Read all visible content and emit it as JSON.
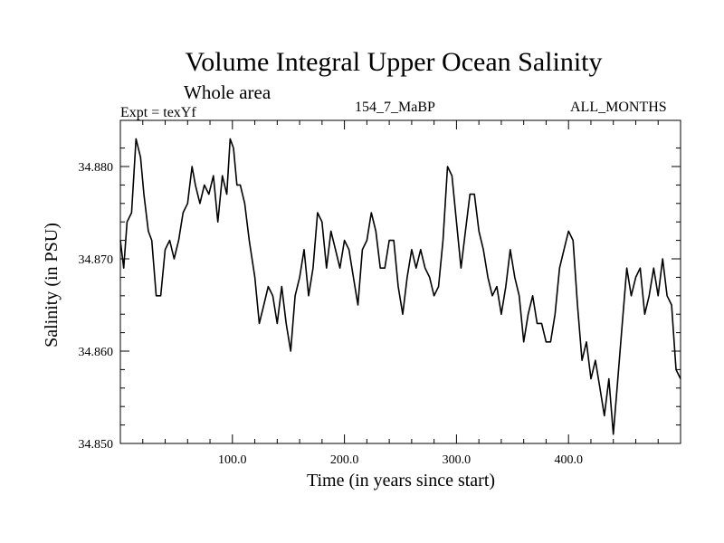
{
  "header": {
    "title": "Volume Integral Upper Ocean Salinity",
    "subtitle": "Whole area",
    "experiment": "Expt = texYf",
    "run_label": "154_7_MaBP",
    "season": "ALL_MONTHS"
  },
  "chart_data": {
    "type": "line",
    "title": "Volume Integral Upper Ocean Salinity",
    "subtitle": "Whole area",
    "xlabel": "Time (in years since start)",
    "ylabel": "Salinity (in PSU)",
    "xlim": [
      0,
      500
    ],
    "ylim": [
      34.85,
      34.885
    ],
    "xticks": [
      100,
      200,
      300,
      400
    ],
    "xtick_labels": [
      "100.0",
      "200.0",
      "300.0",
      "400.0"
    ],
    "yticks": [
      34.85,
      34.86,
      34.87,
      34.88
    ],
    "ytick_labels": [
      "34.850",
      "34.860",
      "34.870",
      "34.880"
    ],
    "grid": false,
    "series": [
      {
        "color": "#000000",
        "x": [
          0,
          3,
          6,
          10,
          14,
          18,
          21,
          25,
          28,
          32,
          36,
          40,
          44,
          48,
          52,
          56,
          60,
          64,
          67,
          71,
          75,
          79,
          83,
          87,
          91,
          95,
          98,
          101,
          104,
          107,
          111,
          115,
          120,
          124,
          128,
          132,
          136,
          140,
          144,
          148,
          152,
          156,
          160,
          164,
          168,
          172,
          176,
          180,
          184,
          188,
          192,
          196,
          200,
          204,
          208,
          212,
          216,
          220,
          224,
          228,
          232,
          236,
          240,
          244,
          248,
          252,
          256,
          260,
          264,
          268,
          272,
          276,
          280,
          284,
          288,
          292,
          296,
          300,
          304,
          308,
          312,
          316,
          320,
          324,
          328,
          332,
          336,
          340,
          344,
          348,
          352,
          356,
          360,
          364,
          368,
          372,
          376,
          380,
          384,
          388,
          392,
          396,
          400,
          404,
          408,
          412,
          416,
          420,
          424,
          428,
          432,
          436,
          440,
          444,
          448,
          452,
          456,
          460,
          464,
          468,
          472,
          476,
          480,
          484,
          488,
          492,
          496,
          500
        ],
        "y": [
          34.872,
          34.869,
          34.874,
          34.875,
          34.883,
          34.881,
          34.877,
          34.873,
          34.872,
          34.866,
          34.866,
          34.871,
          34.872,
          34.87,
          34.872,
          34.875,
          34.876,
          34.88,
          34.878,
          34.876,
          34.878,
          34.877,
          34.879,
          34.874,
          34.879,
          34.877,
          34.883,
          34.882,
          34.878,
          34.878,
          34.876,
          34.872,
          34.868,
          34.863,
          34.865,
          34.867,
          34.866,
          34.863,
          34.867,
          34.863,
          34.86,
          34.866,
          34.868,
          34.871,
          34.866,
          34.869,
          34.875,
          34.874,
          34.869,
          34.873,
          34.871,
          34.869,
          34.872,
          34.871,
          34.868,
          34.865,
          34.871,
          34.872,
          34.875,
          34.873,
          34.869,
          34.869,
          34.872,
          34.872,
          34.867,
          34.864,
          34.868,
          34.871,
          34.869,
          34.871,
          34.869,
          34.868,
          34.866,
          34.867,
          34.872,
          34.88,
          34.879,
          34.874,
          34.869,
          34.873,
          34.877,
          34.877,
          34.873,
          34.871,
          34.868,
          34.866,
          34.867,
          34.864,
          34.867,
          34.871,
          34.868,
          34.866,
          34.861,
          34.864,
          34.866,
          34.863,
          34.863,
          34.861,
          34.861,
          34.864,
          34.869,
          34.871,
          34.873,
          34.872,
          34.865,
          34.859,
          34.861,
          34.857,
          34.859,
          34.856,
          34.853,
          34.857,
          34.851,
          34.857,
          34.863,
          34.869,
          34.866,
          34.868,
          34.869,
          34.864,
          34.866,
          34.869,
          34.866,
          34.87,
          34.866,
          34.865,
          34.858,
          34.857
        ]
      }
    ]
  }
}
